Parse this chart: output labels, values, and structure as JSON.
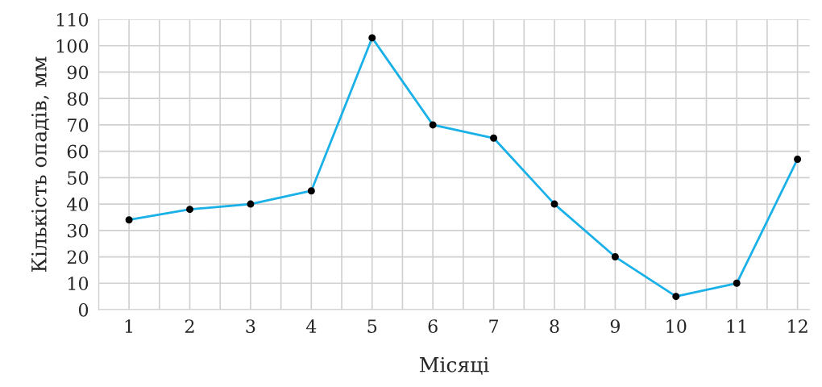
{
  "chart_data": {
    "type": "line",
    "xlabel": "Місяці",
    "ylabel": "Кількість опадів, мм",
    "x": [
      1,
      2,
      3,
      4,
      5,
      6,
      7,
      8,
      9,
      10,
      11,
      12
    ],
    "series": [
      {
        "color": "#1ab0e8",
        "values": [
          34,
          38,
          40,
          45,
          103,
          70,
          65,
          40,
          20,
          5,
          10,
          57
        ]
      }
    ],
    "xlim": [
      0.5,
      12.2
    ],
    "xticks": [
      {
        "value": 0.5,
        "label": null
      },
      1,
      {
        "value": 1.5,
        "label": null
      },
      2,
      {
        "value": 2.5,
        "label": null
      },
      3,
      {
        "value": 3.5,
        "label": null
      },
      4,
      {
        "value": 4.5,
        "label": null
      },
      5,
      {
        "value": 5.5,
        "label": null
      },
      6,
      {
        "value": 6.5,
        "label": null
      },
      7,
      {
        "value": 7.5,
        "label": null
      },
      8,
      {
        "value": 8.5,
        "label": null
      },
      9,
      {
        "value": 9.5,
        "label": null
      },
      10,
      {
        "value": 10.5,
        "label": null
      },
      11,
      {
        "value": 11.5,
        "label": null
      },
      12
    ],
    "ylim": [
      0,
      110
    ],
    "yticks": [
      0,
      10,
      20,
      30,
      40,
      50,
      60,
      70,
      80,
      90,
      100,
      110
    ],
    "grid": true,
    "marker": "circle",
    "line_style": "solid"
  }
}
